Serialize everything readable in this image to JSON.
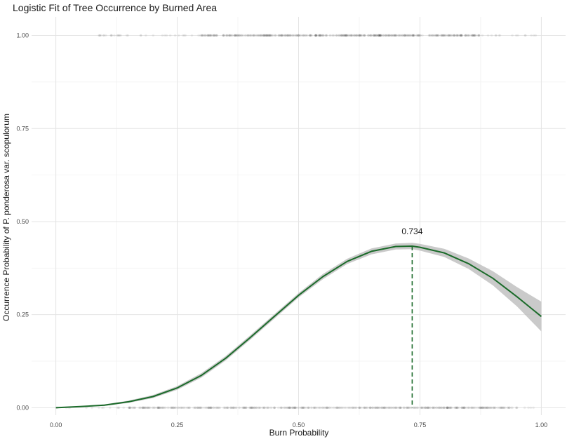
{
  "chart_data": {
    "type": "line",
    "title": "Logistic Fit of Tree Occurrence by Burned Area",
    "xlabel": "Burn Probability",
    "ylabel": "Occurrence Probability of P. ponderosa var. scopulorum",
    "xlim": [
      -0.05,
      1.05
    ],
    "ylim": [
      -0.02,
      1.05
    ],
    "x_ticks": [
      0.0,
      0.25,
      0.5,
      0.75,
      1.0
    ],
    "x_tick_labels": [
      "0.00",
      "0.25",
      "0.50",
      "0.75",
      "1.00"
    ],
    "y_ticks": [
      0.0,
      0.25,
      0.5,
      0.75,
      1.0
    ],
    "y_tick_labels": [
      "0.00",
      "0.25",
      "0.50",
      "0.75",
      "1.00"
    ],
    "grid": true,
    "series": [
      {
        "role": "fit",
        "color": "#1b6b2a",
        "x": [
          0.0,
          0.05,
          0.1,
          0.15,
          0.2,
          0.25,
          0.3,
          0.35,
          0.4,
          0.45,
          0.5,
          0.55,
          0.6,
          0.65,
          0.7,
          0.734,
          0.75,
          0.8,
          0.85,
          0.9,
          0.95,
          1.0
        ],
        "y": [
          0.0,
          0.003,
          0.007,
          0.016,
          0.03,
          0.053,
          0.087,
          0.133,
          0.188,
          0.245,
          0.302,
          0.352,
          0.393,
          0.42,
          0.433,
          0.434,
          0.431,
          0.416,
          0.387,
          0.348,
          0.298,
          0.245
        ],
        "lower": [
          0.0,
          0.002,
          0.005,
          0.013,
          0.026,
          0.048,
          0.081,
          0.127,
          0.182,
          0.239,
          0.296,
          0.345,
          0.386,
          0.412,
          0.425,
          0.426,
          0.422,
          0.405,
          0.373,
          0.329,
          0.272,
          0.205
        ],
        "upper": [
          0.001,
          0.004,
          0.009,
          0.019,
          0.034,
          0.058,
          0.093,
          0.139,
          0.194,
          0.251,
          0.308,
          0.359,
          0.4,
          0.428,
          0.441,
          0.443,
          0.44,
          0.427,
          0.401,
          0.367,
          0.324,
          0.285
        ]
      }
    ],
    "observations": [
      {
        "y": 1.0,
        "range": [
          0.08,
          0.99
        ],
        "dense_range": [
          0.3,
          0.88
        ]
      },
      {
        "y": 0.0,
        "range": [
          0.0,
          0.99
        ],
        "dense_range": [
          0.15,
          0.95
        ]
      }
    ],
    "ribbon_color": "#bdbdbd",
    "annotations": [
      {
        "x": 0.734,
        "y": 0.434,
        "text": "0.734",
        "style": "dashed-vertical",
        "color": "#1b6b2a"
      }
    ]
  }
}
